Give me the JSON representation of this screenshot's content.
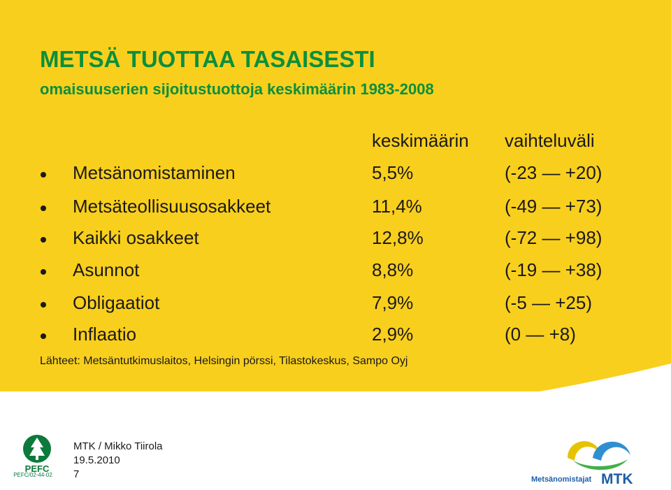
{
  "title": "METSÄ TUOTTAA TASAISESTI",
  "subtitle": "omaisuuserien sijoitustuottoja keskimäärin 1983-2008",
  "headers": {
    "average": "keskimäärin",
    "range": "vaihteluväli"
  },
  "rows": [
    {
      "label": "Metsänomistaminen",
      "average": "5,5%",
      "range": "(-23 — +20)"
    },
    {
      "label": "Metsäteollisuusosakkeet",
      "average": "11,4%",
      "range": "(-49 — +73)"
    },
    {
      "label": "Kaikki osakkeet",
      "average": "12,8%",
      "range": "(-72 — +98)"
    },
    {
      "label": "Asunnot",
      "average": "8,8%",
      "range": "(-19 — +38)"
    },
    {
      "label": "Obligaatiot",
      "average": "7,9%",
      "range": "(-5 — +25)"
    },
    {
      "label": "Inflaatio",
      "average": "2,9%",
      "range": "(0 — +8)"
    }
  ],
  "source": "Lähteet: Metsäntutkimuslaitos, Helsingin pörssi, Tilastokeskus, Sampo Oyj",
  "footer": {
    "author": "MTK / Mikko Tiirola",
    "date": "19.5.2010",
    "page": "7"
  },
  "pefc": {
    "text": "PEFC",
    "code": "PEFC/02-44-02"
  },
  "mtk": {
    "subtitle": "Metsänomistajat",
    "word": "MTK"
  },
  "colors": {
    "background": "#f9cf1d",
    "title": "#0b8f3d",
    "text": "#1a1a1a",
    "mtk_blue": "#1c5ea8"
  }
}
